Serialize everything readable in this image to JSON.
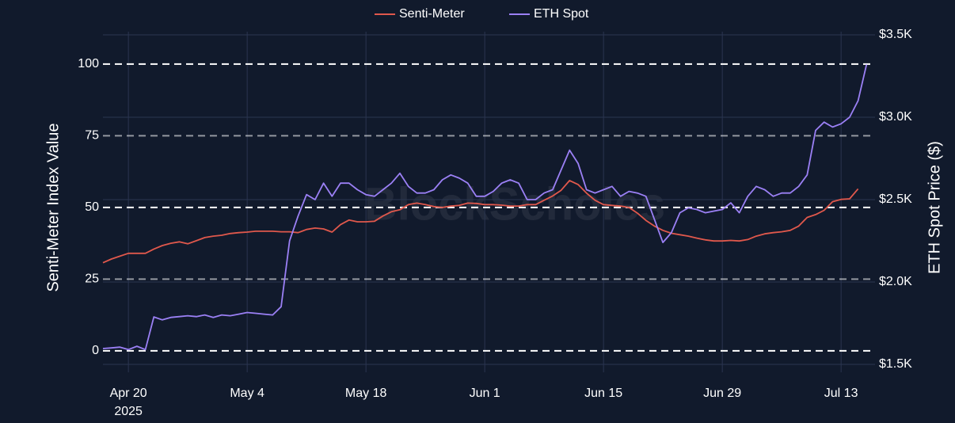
{
  "chart_data": {
    "type": "line",
    "legend": "top-center",
    "watermark": "BlockScholes",
    "y_label": "Senti-Meter Index Value",
    "y2_label": "ETH Spot Price ($)",
    "year_label": "2025",
    "x": [
      "2025-04-17",
      "2025-04-18",
      "2025-04-19",
      "2025-04-20",
      "2025-04-21",
      "2025-04-22",
      "2025-04-23",
      "2025-04-24",
      "2025-04-25",
      "2025-04-26",
      "2025-04-27",
      "2025-04-28",
      "2025-04-29",
      "2025-04-30",
      "2025-05-01",
      "2025-05-02",
      "2025-05-03",
      "2025-05-04",
      "2025-05-05",
      "2025-05-06",
      "2025-05-07",
      "2025-05-08",
      "2025-05-09",
      "2025-05-10",
      "2025-05-11",
      "2025-05-12",
      "2025-05-13",
      "2025-05-14",
      "2025-05-15",
      "2025-05-16",
      "2025-05-17",
      "2025-05-18",
      "2025-05-19",
      "2025-05-20",
      "2025-05-21",
      "2025-05-22",
      "2025-05-23",
      "2025-05-24",
      "2025-05-25",
      "2025-05-26",
      "2025-05-27",
      "2025-05-28",
      "2025-05-29",
      "2025-05-30",
      "2025-05-31",
      "2025-06-01",
      "2025-06-02",
      "2025-06-03",
      "2025-06-04",
      "2025-06-05",
      "2025-06-06",
      "2025-06-07",
      "2025-06-08",
      "2025-06-09",
      "2025-06-10",
      "2025-06-11",
      "2025-06-12",
      "2025-06-13",
      "2025-06-14",
      "2025-06-15",
      "2025-06-16",
      "2025-06-17",
      "2025-06-18",
      "2025-06-19",
      "2025-06-20",
      "2025-06-21",
      "2025-06-22",
      "2025-06-23",
      "2025-06-24",
      "2025-06-25",
      "2025-06-26",
      "2025-06-27",
      "2025-06-28",
      "2025-06-29",
      "2025-06-30",
      "2025-07-01",
      "2025-07-02",
      "2025-07-03",
      "2025-07-04",
      "2025-07-05",
      "2025-07-06",
      "2025-07-07",
      "2025-07-08",
      "2025-07-09",
      "2025-07-10",
      "2025-07-11",
      "2025-07-12",
      "2025-07-13",
      "2025-07-14",
      "2025-07-15",
      "2025-07-16"
    ],
    "series": [
      {
        "name": "Senti-Meter",
        "color": "#e0584c",
        "axis": "y",
        "values": [
          30.7,
          32,
          33,
          34,
          34,
          34,
          35.5,
          36.7,
          37.5,
          38,
          37.3,
          38.4,
          39.5,
          40,
          40.3,
          40.9,
          41.2,
          41.4,
          41.7,
          41.7,
          41.7,
          41.5,
          41.5,
          41.2,
          42.3,
          42.8,
          42.5,
          41.4,
          44,
          45.6,
          45,
          45,
          45.2,
          47,
          48.5,
          49.2,
          51,
          51.5,
          51,
          50.3,
          50,
          50.5,
          50.7,
          51.5,
          51.4,
          51,
          51,
          50.8,
          50.5,
          50.5,
          51,
          51,
          52.5,
          54,
          56,
          59.4,
          58,
          55,
          52.5,
          51,
          50.7,
          50.5,
          50,
          48,
          45.5,
          43.5,
          42,
          41,
          40.5,
          40,
          39.3,
          38.7,
          38.3,
          38.3,
          38.5,
          38.3,
          38.8,
          40,
          40.8,
          41.2,
          41.5,
          42,
          43.5,
          46.5,
          47.5,
          49,
          52,
          52.8,
          53,
          56.5,
          null
        ]
      },
      {
        "name": "ETH Spot",
        "color": "#9b80f5",
        "axis": "y2",
        "values": [
          1596,
          1600,
          1605,
          1590,
          1610,
          1590,
          1788,
          1770,
          1785,
          1790,
          1795,
          1790,
          1800,
          1785,
          1800,
          1795,
          1805,
          1815,
          1810,
          1805,
          1800,
          1850,
          2250,
          2400,
          2530,
          2500,
          2600,
          2520,
          2600,
          2600,
          2560,
          2530,
          2520,
          2560,
          2600,
          2660,
          2580,
          2540,
          2540,
          2560,
          2620,
          2650,
          2630,
          2600,
          2520,
          2520,
          2550,
          2600,
          2620,
          2600,
          2500,
          2500,
          2540,
          2560,
          2680,
          2800,
          2720,
          2560,
          2540,
          2560,
          2580,
          2520,
          2550,
          2540,
          2520,
          2380,
          2240,
          2300,
          2420,
          2450,
          2440,
          2420,
          2430,
          2440,
          2480,
          2420,
          2520,
          2580,
          2560,
          2520,
          2540,
          2540,
          2580,
          2650,
          2920,
          2970,
          2940,
          2960,
          3000,
          3100,
          3320
        ]
      }
    ],
    "xlim": [
      "2025-04-17",
      "2025-07-17"
    ],
    "xticks": [
      {
        "value": "2025-04-20",
        "label": "Apr 20"
      },
      {
        "value": "2025-05-04",
        "label": "May 4"
      },
      {
        "value": "2025-05-18",
        "label": "May 18"
      },
      {
        "value": "2025-06-01",
        "label": "Jun 1"
      },
      {
        "value": "2025-06-15",
        "label": "Jun 15"
      },
      {
        "value": "2025-06-29",
        "label": "Jun 29"
      },
      {
        "value": "2025-07-13",
        "label": "Jul 13"
      }
    ],
    "ylim": [
      -7.5,
      111.3
    ],
    "yticks": [
      0,
      25,
      50,
      75,
      100
    ],
    "y2lim": [
      1452,
      3519
    ],
    "y2ticks": [
      {
        "value": 1500,
        "label": "$1.5K"
      },
      {
        "value": 2000,
        "label": "$2.0K"
      },
      {
        "value": 2500,
        "label": "$2.5K"
      },
      {
        "value": 3000,
        "label": "$3.0K"
      },
      {
        "value": 3500,
        "label": "$3.5K"
      }
    ],
    "grid": true
  }
}
